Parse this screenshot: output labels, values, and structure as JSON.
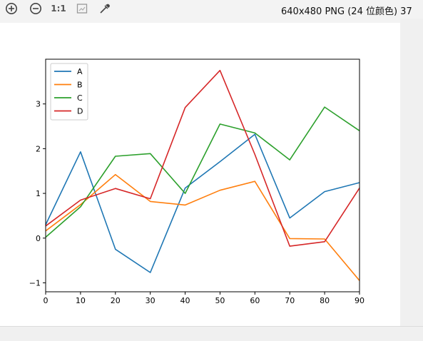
{
  "toolbar": {
    "icons": [
      "zoom-in-icon",
      "zoom-out-icon",
      "actual-size-icon",
      "fit-window-icon",
      "eyedropper-icon"
    ],
    "actual_size_label": "1:1",
    "image_info": "640x480 PNG (24 位颜色) 37"
  },
  "colors": {
    "A": "#1f77b4",
    "B": "#ff7f0e",
    "C": "#2ca02c",
    "D": "#d62728"
  },
  "chart_data": {
    "type": "line",
    "title": "",
    "xlabel": "",
    "ylabel": "",
    "x": [
      0,
      10,
      20,
      30,
      40,
      50,
      60,
      70,
      80,
      90
    ],
    "xlim": [
      0,
      90
    ],
    "ylim": [
      -1.2,
      4.0
    ],
    "xticks": [
      "0",
      "10",
      "20",
      "30",
      "40",
      "50",
      "60",
      "70",
      "80",
      "90"
    ],
    "yticks": [
      "−1",
      "0",
      "1",
      "2",
      "3"
    ],
    "ytick_values": [
      -1,
      0,
      1,
      2,
      3
    ],
    "legend_position": "top-left",
    "series": [
      {
        "name": "A",
        "values": [
          0.3,
          1.93,
          -0.25,
          -0.77,
          1.12,
          1.71,
          2.32,
          0.45,
          1.04,
          1.24
        ]
      },
      {
        "name": "B",
        "values": [
          0.16,
          0.75,
          1.42,
          0.82,
          0.74,
          1.07,
          1.27,
          -0.01,
          -0.02,
          -0.95
        ]
      },
      {
        "name": "C",
        "values": [
          0.02,
          0.7,
          1.83,
          1.89,
          1.0,
          2.55,
          2.35,
          1.75,
          2.93,
          2.4
        ]
      },
      {
        "name": "D",
        "values": [
          0.27,
          0.85,
          1.11,
          0.88,
          2.92,
          3.75,
          1.87,
          -0.18,
          -0.08,
          1.12
        ]
      }
    ]
  }
}
